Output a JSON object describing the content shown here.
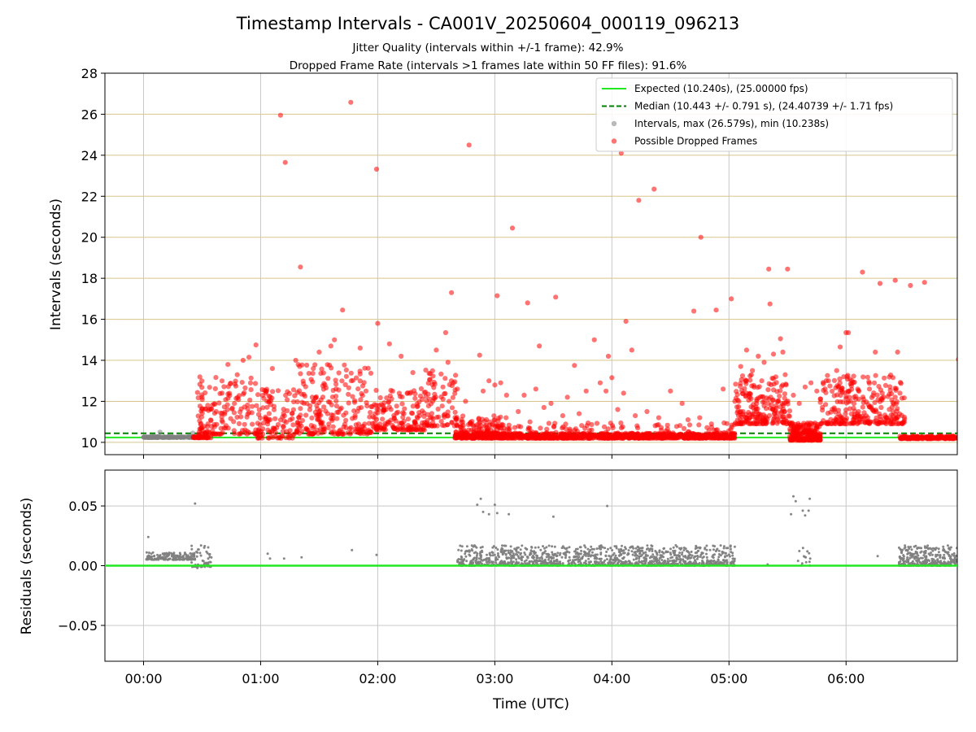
{
  "chart_data": [
    {
      "type": "scatter",
      "title": "Timestamp Intervals - CA001V_20250604_000119_096213",
      "subtitle_lines": [
        "Jitter Quality (intervals within +/-1 frame): 42.9%",
        "Dropped Frame Rate (intervals >1 frames late within 50 FF files): 91.6%"
      ],
      "xlabel": "",
      "ylabel": "Intervals (seconds)",
      "xlim": [
        -0.33,
        6.95
      ],
      "ylim": [
        9.4,
        28
      ],
      "yticks": [
        10,
        12,
        14,
        16,
        18,
        20,
        22,
        24,
        26,
        28
      ],
      "ytick_labels": [
        "10",
        "12",
        "14",
        "16",
        "18",
        "20",
        "22",
        "24",
        "26",
        "28"
      ],
      "grid": {
        "vertical": true,
        "horizontal_color": "#d8c58a"
      },
      "legend_position": "top-right",
      "legend": [
        {
          "label": "Expected (10.240s), (25.00000 fps)",
          "color": "#22e822",
          "kind": "line"
        },
        {
          "label": "Median (10.443 +/- 0.791 s), (24.40739 +/- 1.71 fps)",
          "color": "#008000",
          "kind": "dashed"
        },
        {
          "label": "Intervals, max (26.579s), min (10.238s)",
          "color": "#808080",
          "kind": "dot"
        },
        {
          "label": "Possible Dropped Frames",
          "color": "#ff0000",
          "kind": "dot"
        }
      ],
      "expected_line": 10.24,
      "median_line": 10.443,
      "series": [
        {
          "name": "Possible Dropped Frames",
          "color": "#ff0000",
          "points": [
            [
              1.17,
              25.95
            ],
            [
              1.21,
              23.65
            ],
            [
              1.34,
              18.55
            ],
            [
              1.7,
              16.45
            ],
            [
              1.77,
              26.58
            ],
            [
              1.99,
              23.32
            ],
            [
              2.0,
              15.8
            ],
            [
              2.63,
              17.3
            ],
            [
              2.78,
              24.5
            ],
            [
              2.87,
              14.25
            ],
            [
              3.02,
              17.15
            ],
            [
              3.15,
              20.45
            ],
            [
              3.28,
              16.8
            ],
            [
              3.38,
              14.7
            ],
            [
              3.52,
              17.08
            ],
            [
              3.68,
              13.75
            ],
            [
              3.85,
              15.0
            ],
            [
              3.97,
              14.2
            ],
            [
              4.08,
              24.1
            ],
            [
              4.12,
              15.9
            ],
            [
              4.17,
              14.5
            ],
            [
              4.23,
              21.8
            ],
            [
              4.36,
              22.35
            ],
            [
              4.7,
              16.4
            ],
            [
              4.76,
              20.0
            ],
            [
              4.89,
              16.45
            ],
            [
              5.02,
              17.0
            ],
            [
              5.1,
              13.7
            ],
            [
              5.34,
              18.45
            ],
            [
              5.35,
              16.75
            ],
            [
              5.5,
              18.45
            ],
            [
              5.95,
              14.65
            ],
            [
              6.0,
              15.35
            ],
            [
              6.02,
              15.35
            ],
            [
              6.14,
              18.3
            ],
            [
              6.29,
              17.75
            ],
            [
              6.42,
              17.9
            ],
            [
              6.55,
              17.65
            ],
            [
              6.67,
              17.8
            ],
            [
              6.96,
              14.05
            ],
            [
              0.5,
              10.6
            ],
            [
              0.55,
              10.9
            ],
            [
              0.62,
              11.5
            ],
            [
              0.67,
              12.4
            ],
            [
              0.72,
              13.8
            ],
            [
              0.8,
              13.3
            ],
            [
              0.85,
              14.0
            ],
            [
              0.9,
              14.15
            ],
            [
              0.96,
              14.75
            ],
            [
              1.05,
              12.5
            ],
            [
              1.1,
              13.6
            ],
            [
              1.3,
              14.0
            ],
            [
              1.45,
              13.6
            ],
            [
              1.5,
              14.4
            ],
            [
              1.55,
              12.8
            ],
            [
              1.6,
              14.7
            ],
            [
              1.63,
              15.0
            ],
            [
              1.85,
              14.6
            ],
            [
              1.9,
              12.5
            ],
            [
              2.1,
              14.8
            ],
            [
              2.2,
              14.2
            ],
            [
              2.3,
              13.4
            ],
            [
              2.38,
              12.1
            ],
            [
              2.47,
              12.0
            ],
            [
              2.5,
              14.5
            ],
            [
              2.58,
              15.35
            ],
            [
              2.6,
              13.9
            ],
            [
              2.68,
              12.6
            ],
            [
              2.75,
              12.0
            ],
            [
              2.9,
              12.5
            ],
            [
              2.95,
              13.0
            ],
            [
              3.0,
              12.8
            ],
            [
              3.05,
              12.9
            ],
            [
              3.1,
              12.3
            ],
            [
              3.2,
              11.5
            ],
            [
              3.25,
              12.3
            ],
            [
              3.3,
              11.0
            ],
            [
              3.35,
              12.6
            ],
            [
              3.42,
              11.7
            ],
            [
              3.48,
              11.9
            ],
            [
              3.58,
              11.3
            ],
            [
              3.62,
              12.2
            ],
            [
              3.72,
              11.4
            ],
            [
              3.78,
              12.5
            ],
            [
              3.9,
              12.9
            ],
            [
              3.95,
              12.5
            ],
            [
              4.0,
              13.15
            ],
            [
              4.05,
              11.6
            ],
            [
              4.1,
              12.4
            ],
            [
              4.2,
              11.3
            ],
            [
              4.3,
              11.5
            ],
            [
              4.4,
              11.2
            ],
            [
              4.5,
              12.5
            ],
            [
              4.6,
              11.9
            ],
            [
              4.65,
              11.1
            ],
            [
              4.75,
              11.2
            ],
            [
              4.85,
              10.9
            ],
            [
              4.95,
              12.6
            ],
            [
              5.05,
              12.0
            ],
            [
              5.1,
              11.5
            ],
            [
              5.15,
              14.5
            ],
            [
              5.2,
              13.5
            ],
            [
              5.25,
              14.2
            ],
            [
              5.3,
              13.9
            ],
            [
              5.38,
              14.3
            ],
            [
              5.44,
              15.05
            ],
            [
              5.46,
              14.4
            ],
            [
              5.48,
              13.3
            ],
            [
              5.55,
              12.3
            ],
            [
              5.6,
              11.9
            ],
            [
              5.65,
              12.7
            ],
            [
              5.7,
              12.9
            ],
            [
              5.75,
              12.5
            ],
            [
              5.78,
              10.9
            ],
            [
              5.85,
              13.0
            ],
            [
              5.9,
              11.6
            ],
            [
              5.92,
              13.5
            ],
            [
              5.98,
              13.2
            ],
            [
              6.05,
              13.0
            ],
            [
              6.1,
              12.6
            ],
            [
              6.15,
              12.1
            ],
            [
              6.2,
              12.6
            ],
            [
              6.25,
              14.4
            ],
            [
              6.3,
              11.7
            ],
            [
              6.35,
              11.2
            ],
            [
              6.38,
              10.9
            ],
            [
              6.4,
              11.3
            ],
            [
              6.42,
              12.2
            ],
            [
              6.44,
              14.4
            ],
            [
              6.46,
              12.4
            ]
          ],
          "bands": [
            {
              "x_range": [
                0.42,
                0.58
              ],
              "y_range": [
                10.22,
                10.32
              ],
              "count": 34,
              "seed": 11
            },
            {
              "x_range": [
                0.46,
                0.96
              ],
              "y_range": [
                10.4,
                13.2
              ],
              "count": 150,
              "seed": 23
            },
            {
              "x_range": [
                0.96,
                1.3
              ],
              "y_range": [
                10.2,
                12.6
              ],
              "count": 110,
              "seed": 37
            },
            {
              "x_range": [
                1.3,
                1.95
              ],
              "y_range": [
                10.4,
                13.8
              ],
              "count": 230,
              "seed": 41
            },
            {
              "x_range": [
                1.95,
                2.4
              ],
              "y_range": [
                10.6,
                12.7
              ],
              "count": 150,
              "seed": 53
            },
            {
              "x_range": [
                2.4,
                2.68
              ],
              "y_range": [
                10.8,
                13.6
              ],
              "count": 85,
              "seed": 67
            },
            {
              "x_range": [
                2.66,
                5.05
              ],
              "y_range": [
                10.2,
                10.45
              ],
              "count": 900,
              "seed": 71
            },
            {
              "x_range": [
                2.66,
                3.15
              ],
              "y_range": [
                10.3,
                11.3
              ],
              "count": 150,
              "seed": 83
            },
            {
              "x_range": [
                3.15,
                5.05
              ],
              "y_range": [
                10.3,
                10.95
              ],
              "count": 160,
              "seed": 97
            },
            {
              "x_range": [
                5.05,
                5.52
              ],
              "y_range": [
                10.9,
                13.3
              ],
              "count": 210,
              "seed": 101
            },
            {
              "x_range": [
                5.52,
                5.78
              ],
              "y_range": [
                10.1,
                10.95
              ],
              "count": 230,
              "seed": 113
            },
            {
              "x_range": [
                5.78,
                6.5
              ],
              "y_range": [
                10.9,
                13.3
              ],
              "count": 260,
              "seed": 127
            },
            {
              "x_range": [
                6.45,
                6.95
              ],
              "y_range": [
                10.18,
                10.32
              ],
              "count": 170,
              "seed": 131
            }
          ]
        },
        {
          "name": "Intervals, max (26.579s), min (10.238s)",
          "color": "#808080",
          "points": [
            [
              0.14,
              10.5
            ],
            [
              0.42,
              10.45
            ],
            [
              6.88,
              10.22
            ]
          ],
          "bands": [
            {
              "x_range": [
                0.0,
                0.44
              ],
              "y_range": [
                10.24,
                10.28
              ],
              "count": 140,
              "seed": 5
            }
          ]
        }
      ]
    },
    {
      "type": "scatter",
      "xlabel": "Time (UTC)",
      "ylabel": "Residuals (seconds)",
      "xlim": [
        -0.33,
        6.95
      ],
      "ylim": [
        -0.08,
        0.08
      ],
      "yticks": [
        -0.05,
        0.0,
        0.05
      ],
      "ytick_labels": [
        "−0.05",
        "0.00",
        "0.05"
      ],
      "xticks": [
        0,
        1,
        2,
        3,
        4,
        5,
        6
      ],
      "xtick_labels": [
        "00:00",
        "01:00",
        "02:00",
        "03:00",
        "04:00",
        "05:00",
        "06:00"
      ],
      "grid": {
        "vertical": true,
        "horizontal": true
      },
      "zero_line_color": "#22e822",
      "series": [
        {
          "color": "#808080",
          "points": [
            [
              0.04,
              0.024
            ],
            [
              0.44,
              0.052
            ],
            [
              0.46,
              -0.002
            ],
            [
              1.06,
              0.01
            ],
            [
              1.08,
              0.006
            ],
            [
              1.2,
              0.006
            ],
            [
              1.35,
              0.007
            ],
            [
              1.78,
              0.013
            ],
            [
              1.99,
              0.009
            ],
            [
              2.88,
              0.056
            ],
            [
              2.85,
              0.051
            ],
            [
              2.9,
              0.045
            ],
            [
              2.95,
              0.043
            ],
            [
              3.0,
              0.051
            ],
            [
              3.02,
              0.044
            ],
            [
              3.12,
              0.043
            ],
            [
              3.5,
              0.041
            ],
            [
              3.96,
              0.05
            ],
            [
              4.93,
              0.003
            ],
            [
              5.33,
              0.001
            ],
            [
              5.55,
              0.058
            ],
            [
              5.57,
              0.054
            ],
            [
              5.53,
              0.043
            ],
            [
              5.63,
              0.046
            ],
            [
              5.65,
              0.042
            ],
            [
              5.68,
              0.046
            ],
            [
              5.69,
              0.056
            ],
            [
              5.67,
              0.012
            ],
            [
              5.59,
              0.004
            ],
            [
              6.27,
              0.008
            ]
          ],
          "bands": [
            {
              "x_range": [
                0.02,
                0.44
              ],
              "y_range": [
                0.005,
                0.011
              ],
              "count": 160,
              "seed": 201
            },
            {
              "x_range": [
                0.4,
                0.58
              ],
              "y_range": [
                -0.001,
                0.017
              ],
              "count": 60,
              "seed": 203
            },
            {
              "x_range": [
                2.68,
                5.05
              ],
              "y_range": [
                0.0,
                0.017
              ],
              "count": 1250,
              "seed": 211
            },
            {
              "x_range": [
                5.6,
                5.7
              ],
              "y_range": [
                0.0,
                0.016
              ],
              "count": 12,
              "seed": 217
            },
            {
              "x_range": [
                6.45,
                6.95
              ],
              "y_range": [
                0.0,
                0.017
              ],
              "count": 340,
              "seed": 223
            }
          ]
        }
      ]
    }
  ]
}
